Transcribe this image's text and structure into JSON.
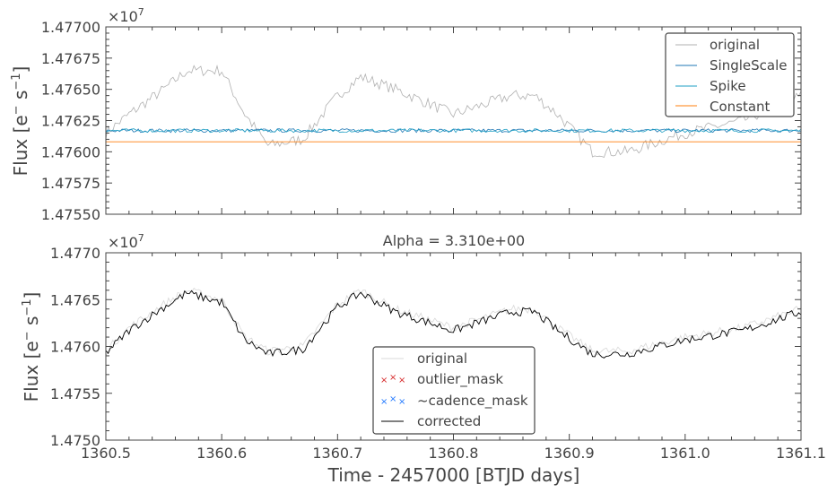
{
  "chart_data": [
    {
      "type": "line",
      "offset_label": "×10",
      "offset_exponent": "7",
      "ylabel": "Flux [e",
      "ylabel_unit": "s",
      "ylabel_sup_neg": "−",
      "ylabel_sup_exp": "−1",
      "ylabel_close": "]",
      "ylim": [
        1.4755,
        1.477
      ],
      "xlim": [
        1360.5,
        1361.1
      ],
      "ytick_labels": [
        "1.47550",
        "1.47575",
        "1.47600",
        "1.47625",
        "1.47650",
        "1.47675",
        "1.47700"
      ],
      "yticks": [
        1.4755,
        1.47575,
        1.476,
        1.47625,
        1.4765,
        1.47675,
        1.477
      ],
      "legend_position": "top-right",
      "series": [
        {
          "name": "original",
          "color": "#b0b0b0",
          "kind": "noisy",
          "profile": [
            [
              1360.5,
              1.47615
            ],
            [
              1360.52,
              1.4763
            ],
            [
              1360.55,
              1.4765
            ],
            [
              1360.57,
              1.47665
            ],
            [
              1360.6,
              1.47665
            ],
            [
              1360.62,
              1.4763
            ],
            [
              1360.64,
              1.47605
            ],
            [
              1360.67,
              1.4761
            ],
            [
              1360.7,
              1.47645
            ],
            [
              1360.72,
              1.4766
            ],
            [
              1360.75,
              1.4765
            ],
            [
              1360.8,
              1.4763
            ],
            [
              1360.85,
              1.47645
            ],
            [
              1360.87,
              1.47645
            ],
            [
              1360.89,
              1.4763
            ],
            [
              1360.92,
              1.476
            ],
            [
              1360.95,
              1.476
            ],
            [
              1361.0,
              1.47615
            ],
            [
              1361.05,
              1.47625
            ],
            [
              1361.1,
              1.47645
            ]
          ]
        },
        {
          "name": "SingleScale",
          "color": "#1f77b4",
          "kind": "noisy",
          "profile": [
            [
              1360.5,
              1.47617
            ],
            [
              1361.1,
              1.47617
            ]
          ]
        },
        {
          "name": "Spike",
          "color": "#1f9fc4",
          "kind": "noisy",
          "profile": [
            [
              1360.5,
              1.47617
            ],
            [
              1361.1,
              1.47617
            ]
          ]
        },
        {
          "name": "Constant",
          "color": "#ff7f0e",
          "kind": "flat",
          "profile": [
            [
              1360.5,
              1.47608
            ],
            [
              1361.1,
              1.47608
            ]
          ]
        }
      ]
    },
    {
      "type": "line",
      "title": "Alpha = 3.310e+00",
      "offset_label": "×10",
      "offset_exponent": "7",
      "ylabel": "Flux [e",
      "ylabel_unit": "s",
      "ylabel_sup_neg": "−",
      "ylabel_sup_exp": "−1",
      "ylabel_close": "]",
      "xlabel": "Time - 2457000 [BTJD days]",
      "ylim": [
        1.475,
        1.477
      ],
      "xlim": [
        1360.5,
        1361.1
      ],
      "ytick_labels": [
        "1.4750",
        "1.4755",
        "1.4760",
        "1.4765",
        "1.4770"
      ],
      "yticks": [
        1.475,
        1.4755,
        1.476,
        1.4765,
        1.477
      ],
      "xtick_labels": [
        "1360.5",
        "1360.6",
        "1360.7",
        "1360.8",
        "1360.9",
        "1361.0",
        "1361.1"
      ],
      "xticks": [
        1360.5,
        1360.6,
        1360.7,
        1360.8,
        1360.9,
        1361.0,
        1361.1
      ],
      "legend_position": "bottom-center",
      "series": [
        {
          "name": "original",
          "color": "#d8d8d8",
          "kind": "noisy",
          "profile": [
            [
              1360.5,
              1.47595
            ],
            [
              1360.52,
              1.4762
            ],
            [
              1360.55,
              1.47645
            ],
            [
              1360.57,
              1.4766
            ],
            [
              1360.6,
              1.4765
            ],
            [
              1360.62,
              1.4761
            ],
            [
              1360.64,
              1.47595
            ],
            [
              1360.67,
              1.476
            ],
            [
              1360.7,
              1.47645
            ],
            [
              1360.72,
              1.4766
            ],
            [
              1360.75,
              1.4764
            ],
            [
              1360.8,
              1.4762
            ],
            [
              1360.85,
              1.4764
            ],
            [
              1360.87,
              1.4764
            ],
            [
              1360.89,
              1.4762
            ],
            [
              1360.92,
              1.47595
            ],
            [
              1360.95,
              1.47595
            ],
            [
              1361.0,
              1.4761
            ],
            [
              1361.05,
              1.4762
            ],
            [
              1361.1,
              1.4764
            ]
          ]
        },
        {
          "name": "outlier_mask",
          "color": "#d62728",
          "kind": "marker"
        },
        {
          "name": "~cadence_mask",
          "color": "#1f77ff",
          "kind": "marker"
        },
        {
          "name": "corrected",
          "color": "#000000",
          "kind": "noisy",
          "profile": [
            [
              1360.5,
              1.47593
            ],
            [
              1360.52,
              1.47617
            ],
            [
              1360.55,
              1.47642
            ],
            [
              1360.57,
              1.47657
            ],
            [
              1360.6,
              1.47647
            ],
            [
              1360.62,
              1.47607
            ],
            [
              1360.64,
              1.47592
            ],
            [
              1360.67,
              1.47597
            ],
            [
              1360.7,
              1.47642
            ],
            [
              1360.72,
              1.47657
            ],
            [
              1360.75,
              1.47637
            ],
            [
              1360.8,
              1.47617
            ],
            [
              1360.85,
              1.47637
            ],
            [
              1360.87,
              1.47637
            ],
            [
              1360.89,
              1.47617
            ],
            [
              1360.92,
              1.47592
            ],
            [
              1360.95,
              1.47592
            ],
            [
              1361.0,
              1.47607
            ],
            [
              1361.05,
              1.47617
            ],
            [
              1361.1,
              1.47637
            ]
          ]
        }
      ]
    }
  ],
  "colors": {
    "axis": "#444444",
    "background": "#ffffff"
  }
}
